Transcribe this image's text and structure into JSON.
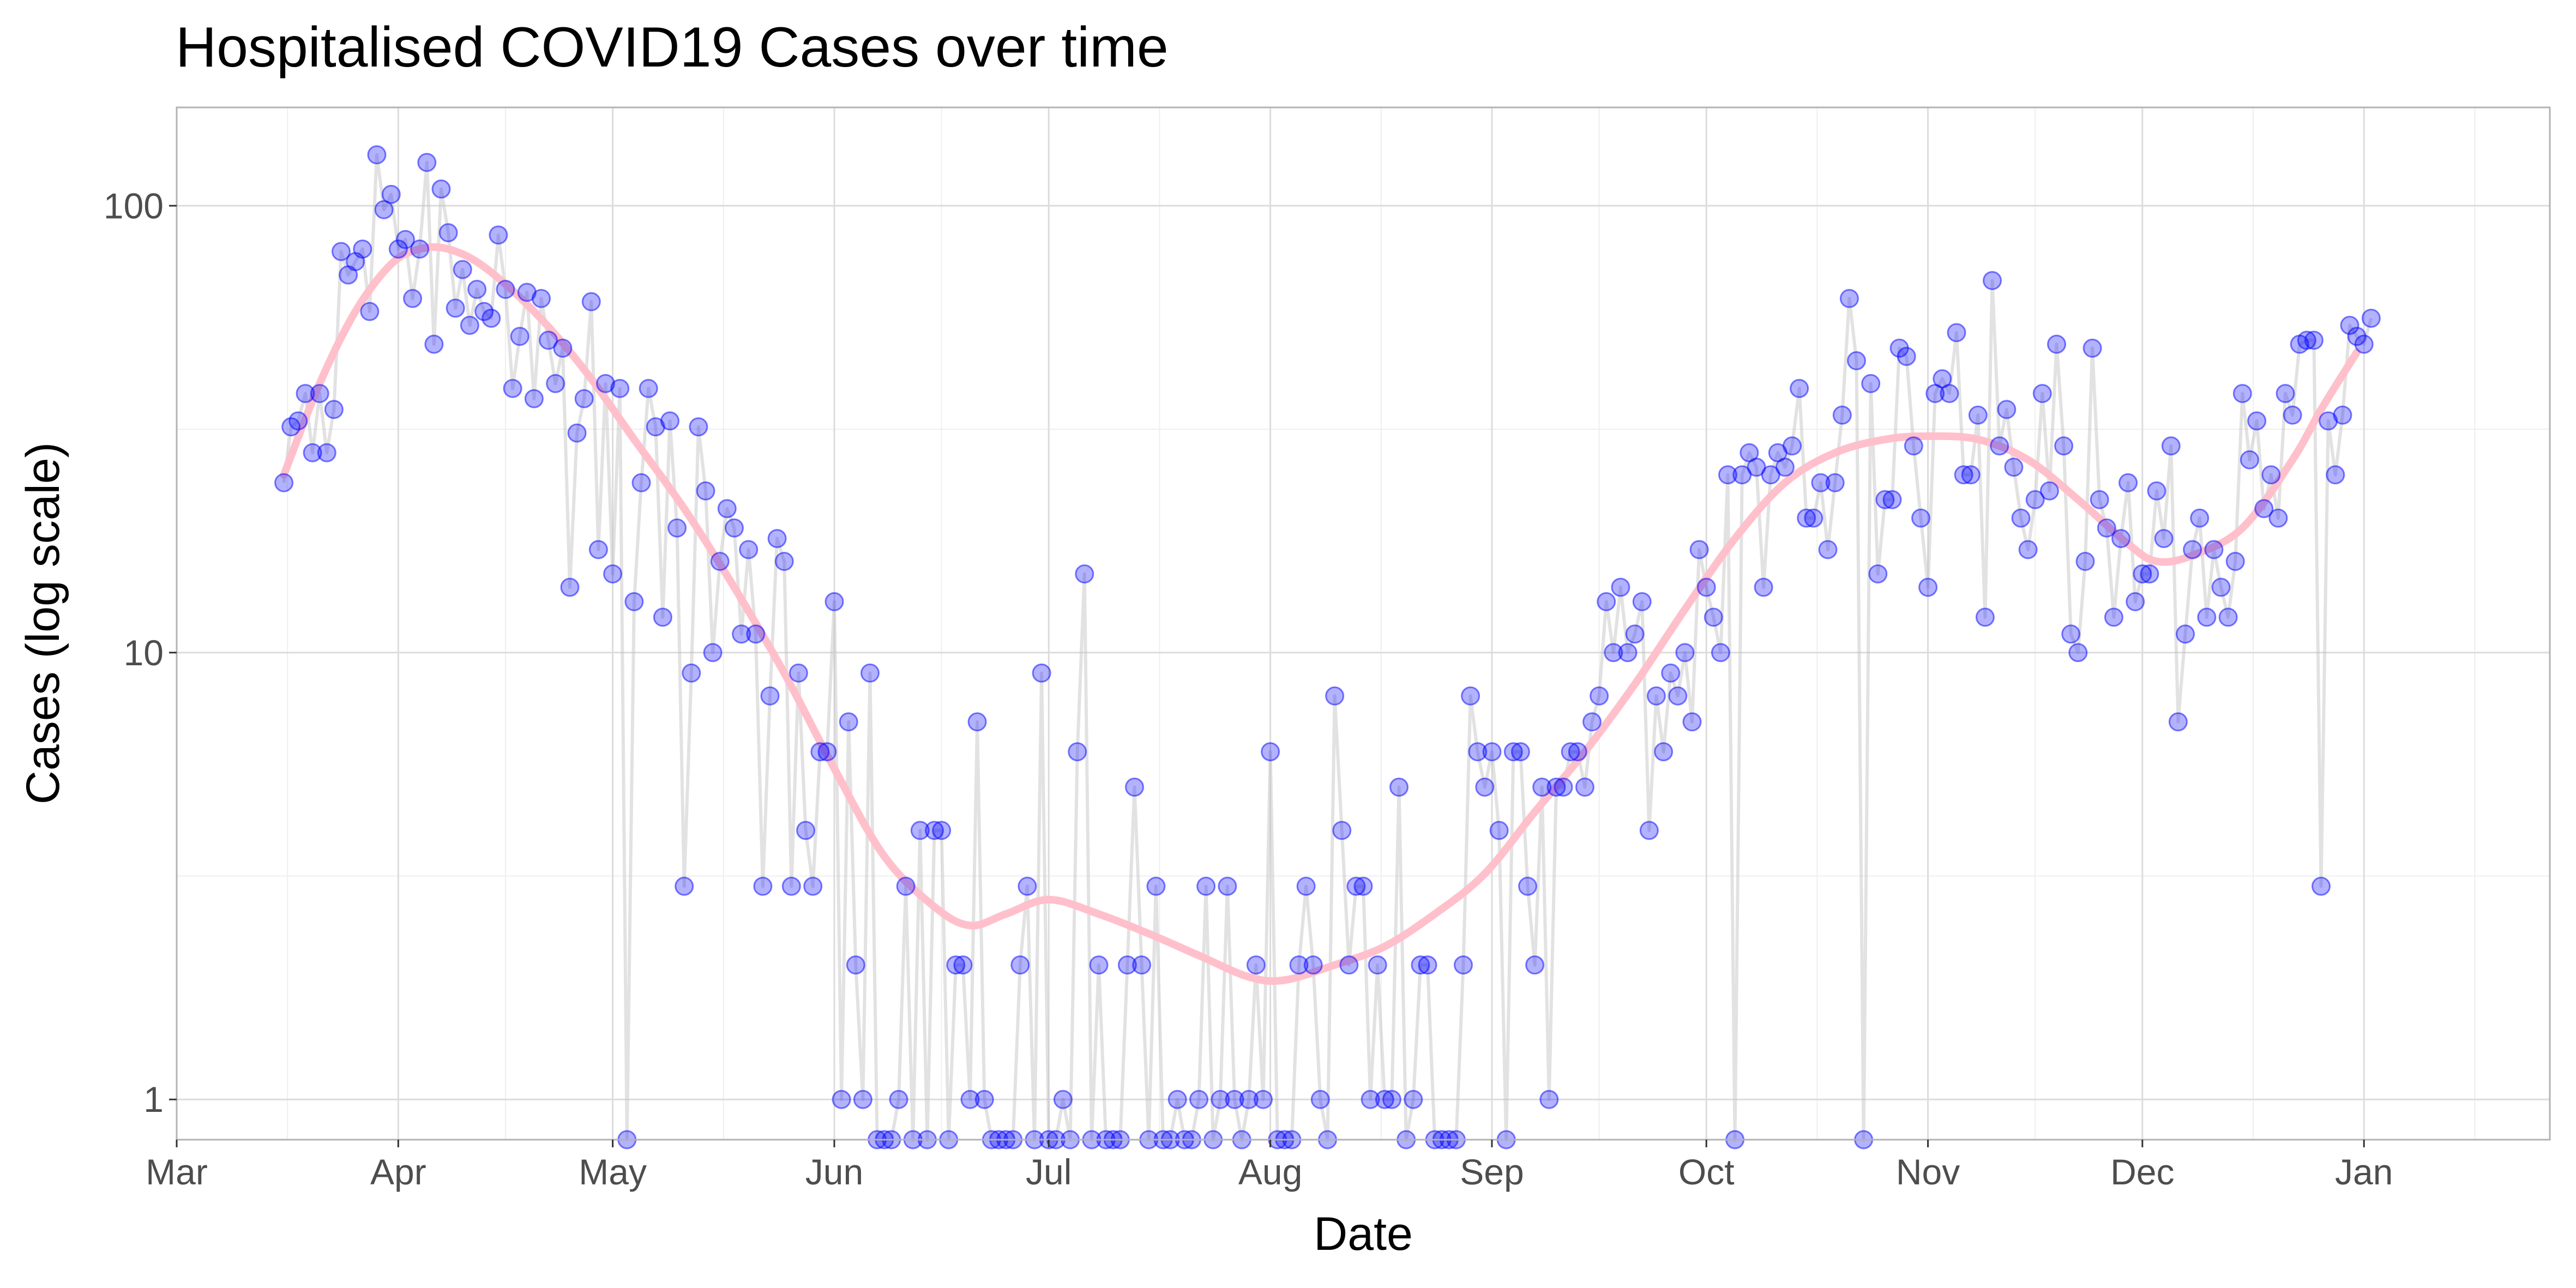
{
  "chart_data": {
    "type": "scatter",
    "title": "Hospitalised COVID19 Cases over time",
    "xlabel": "Date",
    "ylabel": "Cases (log scale)",
    "x_scale": "date",
    "y_scale": "log10",
    "xlim": [
      "2020-03-01",
      "2021-01-27"
    ],
    "ylim_log10": [
      -0.09,
      2.22
    ],
    "x_ticks": [
      {
        "label": "Mar",
        "date": "2020-03-01"
      },
      {
        "label": "Apr",
        "date": "2020-04-01"
      },
      {
        "label": "May",
        "date": "2020-05-01"
      },
      {
        "label": "Jun",
        "date": "2020-06-01"
      },
      {
        "label": "Jul",
        "date": "2020-07-01"
      },
      {
        "label": "Aug",
        "date": "2020-08-01"
      },
      {
        "label": "Sep",
        "date": "2020-09-01"
      },
      {
        "label": "Oct",
        "date": "2020-10-01"
      },
      {
        "label": "Nov",
        "date": "2020-11-01"
      },
      {
        "label": "Dec",
        "date": "2020-12-01"
      },
      {
        "label": "Jan",
        "date": "2021-01-01"
      }
    ],
    "y_ticks": [
      {
        "label": "1",
        "value": 1
      },
      {
        "label": "10",
        "value": 10
      },
      {
        "label": "100",
        "value": 100
      }
    ],
    "grid": true,
    "colors": {
      "points": "#0000ff",
      "line": "#bebebe",
      "smooth": "#ffc0cb",
      "grid_major": "#dcdcdc",
      "grid_minor": "#efefef",
      "border": "#b3b3b3"
    },
    "series": [
      {
        "style": "points-with-connecting-line",
        "start_date": "2020-03-16",
        "values": [
          24,
          32,
          33,
          38,
          28,
          38,
          28,
          35,
          79,
          70,
          75,
          80,
          58,
          130,
          98,
          106,
          80,
          84,
          62,
          80,
          125,
          49,
          109,
          87,
          59,
          72,
          54,
          65,
          58,
          56,
          86,
          65,
          39,
          51,
          64,
          37,
          62,
          50,
          40,
          48,
          14,
          31,
          37,
          61,
          17,
          40,
          15,
          39,
          0,
          13,
          24,
          39,
          32,
          12,
          33,
          19,
          3,
          9,
          32,
          23,
          10,
          16,
          21,
          19,
          11,
          17,
          11,
          3,
          8,
          18,
          16,
          3,
          9,
          4,
          3,
          6,
          6,
          13,
          1,
          7,
          2,
          1,
          9,
          0,
          0,
          0,
          1,
          3,
          0,
          4,
          0,
          4,
          4,
          0,
          2,
          2,
          1,
          7,
          1,
          0,
          0,
          0,
          0,
          2,
          3,
          0,
          9,
          0,
          0,
          1,
          0,
          6,
          15,
          0,
          2,
          0,
          0,
          0,
          2,
          5,
          2,
          0,
          3,
          0,
          0,
          1,
          0,
          0,
          1,
          3,
          0,
          1,
          3,
          1,
          0,
          1,
          2,
          1,
          6,
          0,
          0,
          0,
          2,
          3,
          2,
          1,
          0,
          8,
          4,
          2,
          3,
          3,
          1,
          2,
          1,
          1,
          5,
          0,
          1,
          2,
          2,
          0,
          0,
          0,
          0,
          2,
          8,
          6,
          5,
          6,
          4,
          0,
          6,
          6,
          3,
          2,
          5,
          1,
          5,
          5,
          6,
          6,
          5,
          7,
          8,
          13,
          10,
          14,
          10,
          11,
          13,
          4,
          8,
          6,
          9,
          8,
          10,
          7,
          17,
          14,
          12,
          10,
          25,
          0,
          25,
          28,
          26,
          14,
          25,
          28,
          26,
          29,
          39,
          20,
          20,
          24,
          17,
          24,
          34,
          62,
          45,
          0,
          40,
          15,
          22,
          22,
          48,
          46,
          29,
          20,
          14,
          38,
          41,
          38,
          52,
          25,
          25,
          34,
          12,
          68,
          29,
          35,
          26,
          20,
          17,
          22,
          38,
          23,
          49,
          29,
          11,
          10,
          16,
          48,
          22,
          19,
          12,
          18,
          24,
          13,
          15,
          15,
          23,
          18,
          29,
          7,
          11,
          17,
          20,
          12,
          17,
          14,
          12,
          16,
          38,
          27,
          33,
          21,
          25,
          20,
          38,
          34,
          49,
          50,
          50,
          3,
          33,
          25,
          34,
          54,
          51,
          49,
          56
        ]
      },
      {
        "name": "",
        "style": "smoothed-trend",
        "points": [
          [
            "2020-03-16",
            25
          ],
          [
            "2020-03-21",
            40
          ],
          [
            "2020-03-26",
            58
          ],
          [
            "2020-03-31",
            74
          ],
          [
            "2020-04-04",
            80
          ],
          [
            "2020-04-08",
            80
          ],
          [
            "2020-04-13",
            73
          ],
          [
            "2020-04-20",
            58
          ],
          [
            "2020-04-27",
            43
          ],
          [
            "2020-05-04",
            30
          ],
          [
            "2020-05-11",
            21
          ],
          [
            "2020-05-18",
            14
          ],
          [
            "2020-05-25",
            9
          ],
          [
            "2020-06-01",
            5.5
          ],
          [
            "2020-06-08",
            3.5
          ],
          [
            "2020-06-15",
            2.7
          ],
          [
            "2020-06-20",
            2.45
          ],
          [
            "2020-06-25",
            2.6
          ],
          [
            "2020-07-01",
            2.8
          ],
          [
            "2020-07-08",
            2.6
          ],
          [
            "2020-07-15",
            2.35
          ],
          [
            "2020-07-22",
            2.1
          ],
          [
            "2020-07-29",
            1.88
          ],
          [
            "2020-08-03",
            1.85
          ],
          [
            "2020-08-10",
            2.0
          ],
          [
            "2020-08-17",
            2.2
          ],
          [
            "2020-08-24",
            2.6
          ],
          [
            "2020-08-31",
            3.2
          ],
          [
            "2020-09-07",
            4.4
          ],
          [
            "2020-09-14",
            6.0
          ],
          [
            "2020-09-21",
            8.5
          ],
          [
            "2020-09-28",
            12.5
          ],
          [
            "2020-10-05",
            18
          ],
          [
            "2020-10-12",
            24
          ],
          [
            "2020-10-19",
            28
          ],
          [
            "2020-10-26",
            30
          ],
          [
            "2020-11-01",
            30.5
          ],
          [
            "2020-11-08",
            30
          ],
          [
            "2020-11-15",
            27
          ],
          [
            "2020-11-22",
            22
          ],
          [
            "2020-11-29",
            17.5
          ],
          [
            "2020-12-03",
            16
          ],
          [
            "2020-12-08",
            16.5
          ],
          [
            "2020-12-15",
            19
          ],
          [
            "2020-12-22",
            27
          ],
          [
            "2020-12-26",
            35
          ],
          [
            "2020-12-31",
            47
          ]
        ]
      }
    ]
  }
}
